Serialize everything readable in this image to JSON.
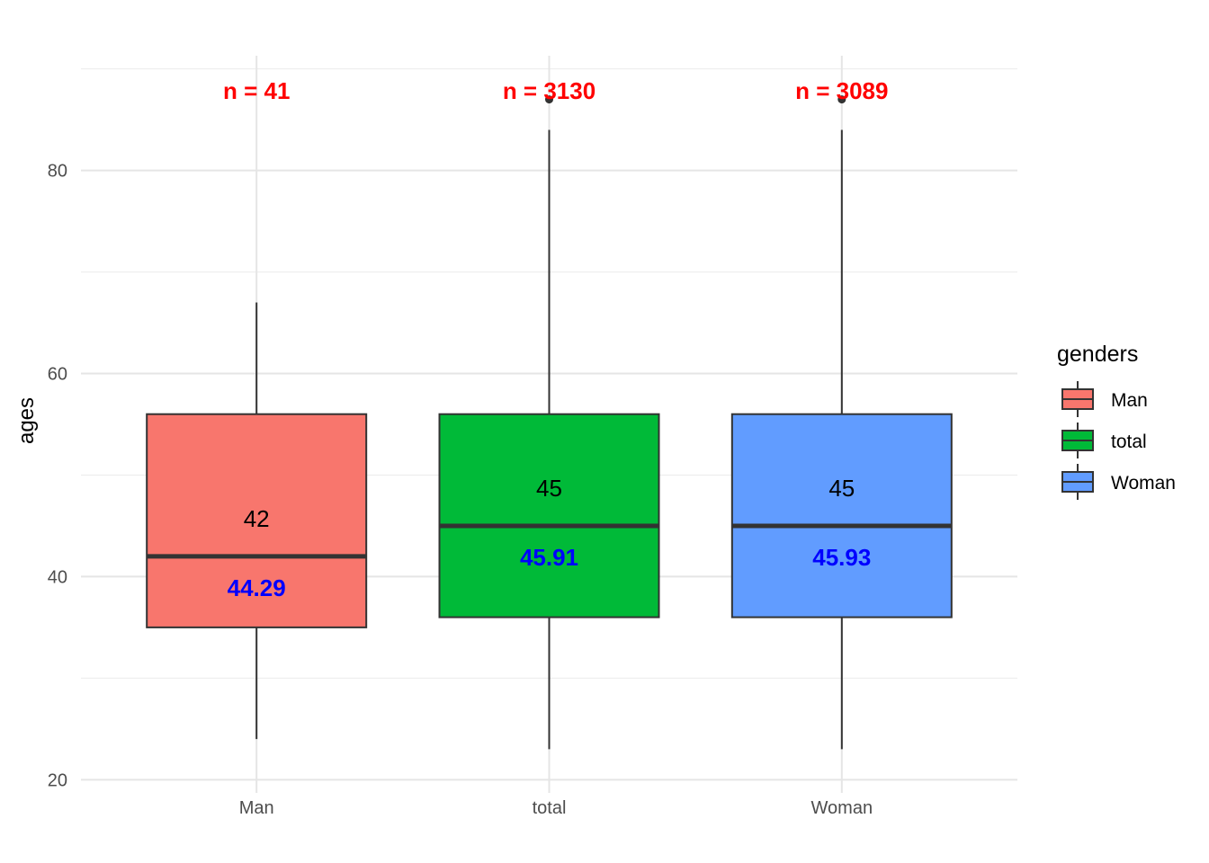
{
  "chart_data": {
    "type": "boxplot",
    "xlabel": "",
    "ylabel": "ages",
    "ylim": [
      18.7,
      91.3
    ],
    "yticks": [
      20,
      40,
      60,
      80
    ],
    "grid": true,
    "legend": {
      "title": "genders",
      "position": "right",
      "entries": [
        "Man",
        "total",
        "Woman"
      ]
    },
    "categories": [
      "Man",
      "total",
      "Woman"
    ],
    "boxes": [
      {
        "category": "Man",
        "color": "#F8766D",
        "whisker_low": 24,
        "q1": 35,
        "median": 42,
        "q3": 56,
        "whisker_high": 67,
        "outliers": [],
        "median_label": "42",
        "mean_label": "44.29",
        "n_label": "n = 41"
      },
      {
        "category": "total",
        "color": "#00BA38",
        "whisker_low": 23,
        "q1": 36,
        "median": 45,
        "q3": 56,
        "whisker_high": 84,
        "outliers": [
          87
        ],
        "median_label": "45",
        "mean_label": "45.91",
        "n_label": "n = 3130"
      },
      {
        "category": "Woman",
        "color": "#619CFF",
        "whisker_low": 23,
        "q1": 36,
        "median": 45,
        "q3": 56,
        "whisker_high": 84,
        "outliers": [
          87
        ],
        "median_label": "45",
        "mean_label": "45.93",
        "n_label": "n = 3089"
      }
    ],
    "label_colors": {
      "n": "#FF0000",
      "mean": "#0000FF",
      "median": "#000000"
    }
  }
}
